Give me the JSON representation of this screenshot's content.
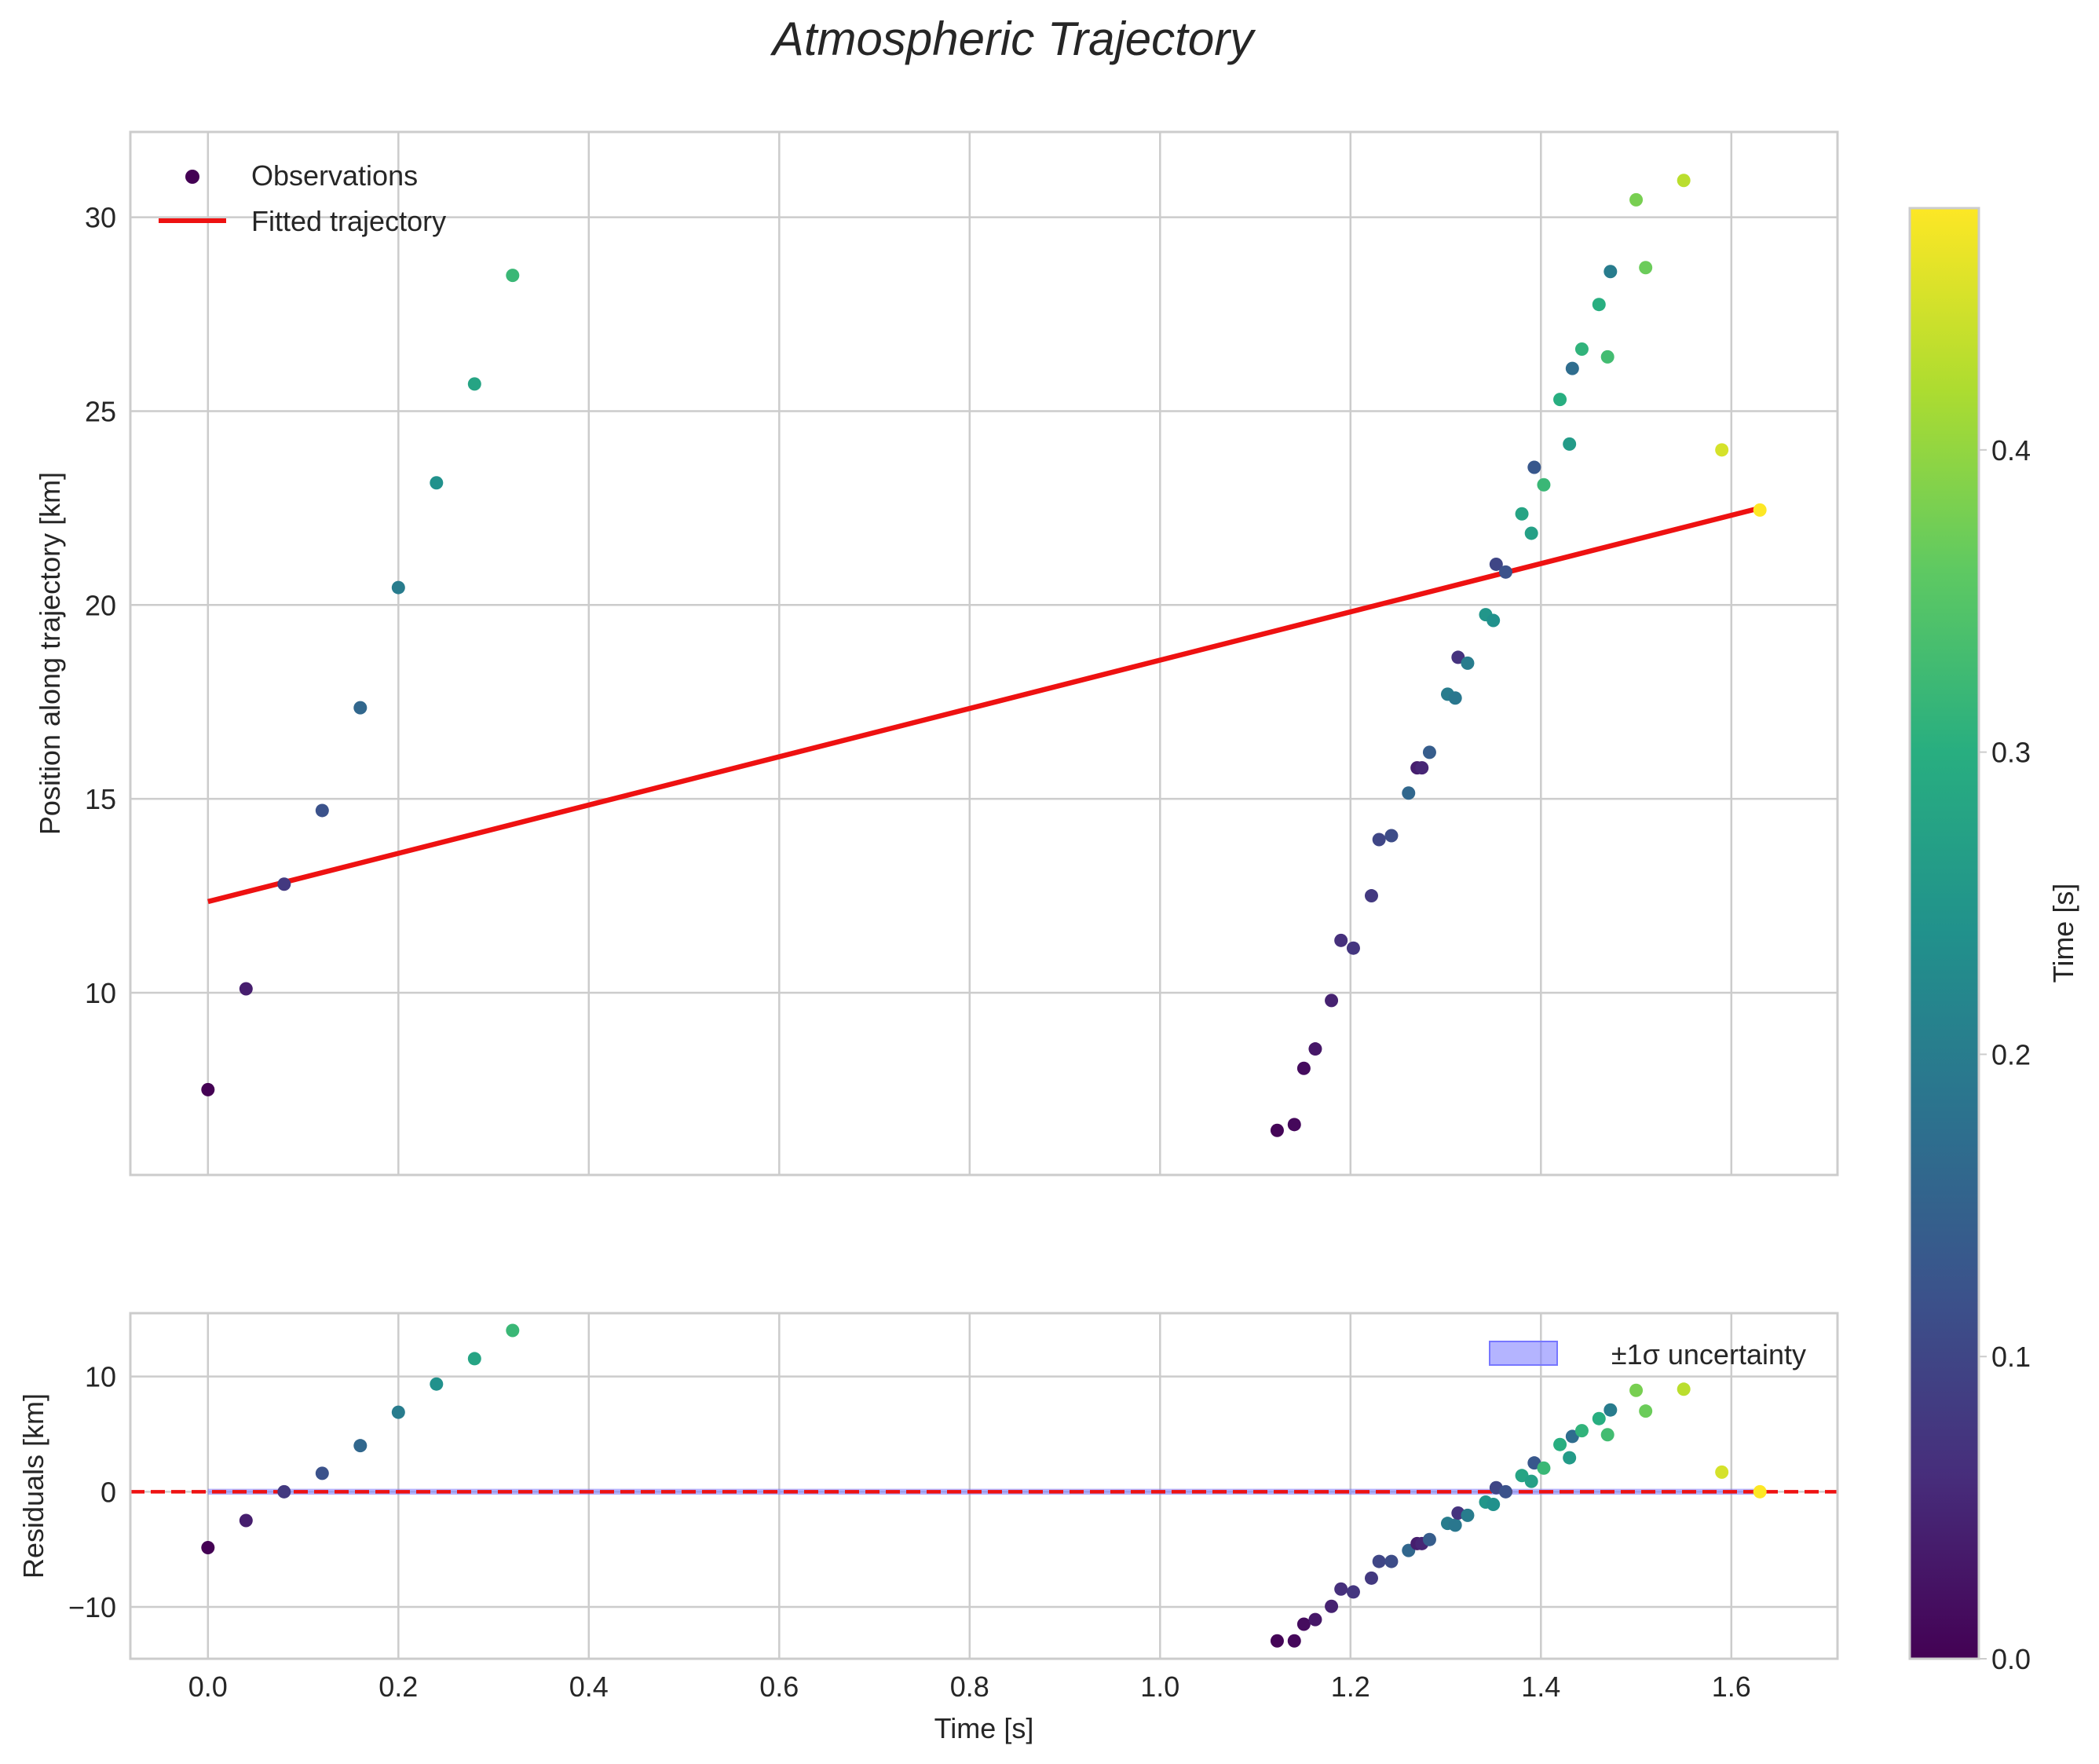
{
  "title": "Atmospheric Trajectory",
  "chart_data": [
    {
      "type": "scatter",
      "panel": "main",
      "ylabel": "Position along trajectory [km]",
      "xlim": [
        -0.0815,
        1.7115
      ],
      "ylim": [
        5.3,
        32.2
      ],
      "xticks": [
        0.0,
        0.2,
        0.4,
        0.6,
        0.8,
        1.0,
        1.2,
        1.4,
        1.6
      ],
      "yticks": [
        10,
        15,
        20,
        25,
        30
      ],
      "ytick_labels": [
        "10",
        "15",
        "20",
        "25",
        "30"
      ],
      "grid": true,
      "legend": {
        "position": "top-left",
        "entries": [
          "Observations",
          "Fitted trajectory"
        ]
      },
      "fit_line": {
        "name": "Fitted trajectory",
        "color": "#ee1111",
        "x": [
          0.0,
          1.63
        ],
        "y": [
          12.35,
          22.5
        ]
      },
      "observations": {
        "name": "Observations",
        "points": [
          [
            0.0,
            7.5,
            0.0
          ],
          [
            0.04,
            10.1,
            0.04
          ],
          [
            0.08,
            12.8,
            0.08
          ],
          [
            0.12,
            14.7,
            0.12
          ],
          [
            0.16,
            17.35,
            0.16
          ],
          [
            0.2,
            20.45,
            0.2
          ],
          [
            0.24,
            23.15,
            0.24
          ],
          [
            0.28,
            25.7,
            0.28
          ],
          [
            0.32,
            28.5,
            0.32
          ],
          [
            1.123,
            6.45,
            0.005
          ],
          [
            1.141,
            6.6,
            0.01
          ],
          [
            1.151,
            8.05,
            0.015
          ],
          [
            1.163,
            8.55,
            0.03
          ],
          [
            1.18,
            9.8,
            0.045
          ],
          [
            1.19,
            11.35,
            0.065
          ],
          [
            1.203,
            11.15,
            0.075
          ],
          [
            1.222,
            12.5,
            0.08
          ],
          [
            1.23,
            13.95,
            0.1
          ],
          [
            1.243,
            14.05,
            0.11
          ],
          [
            1.261,
            15.15,
            0.16
          ],
          [
            1.27,
            15.8,
            0.04
          ],
          [
            1.275,
            15.8,
            0.05
          ],
          [
            1.283,
            16.2,
            0.14
          ],
          [
            1.302,
            17.7,
            0.2
          ],
          [
            1.31,
            17.6,
            0.19
          ],
          [
            1.313,
            18.65,
            0.07
          ],
          [
            1.323,
            18.5,
            0.2
          ],
          [
            1.342,
            19.75,
            0.25
          ],
          [
            1.35,
            19.6,
            0.24
          ],
          [
            1.353,
            21.05,
            0.1
          ],
          [
            1.363,
            20.85,
            0.12
          ],
          [
            1.38,
            22.35,
            0.28
          ],
          [
            1.39,
            21.85,
            0.27
          ],
          [
            1.393,
            23.55,
            0.13
          ],
          [
            1.403,
            23.1,
            0.32
          ],
          [
            1.42,
            25.3,
            0.3
          ],
          [
            1.43,
            24.15,
            0.26
          ],
          [
            1.433,
            26.1,
            0.17
          ],
          [
            1.443,
            26.6,
            0.31
          ],
          [
            1.461,
            27.75,
            0.3
          ],
          [
            1.47,
            26.4,
            0.33
          ],
          [
            1.473,
            28.6,
            0.2
          ],
          [
            1.5,
            30.45,
            0.38
          ],
          [
            1.51,
            28.7,
            0.37
          ],
          [
            1.55,
            30.95,
            0.43
          ],
          [
            1.59,
            24.0,
            0.45
          ],
          [
            1.63,
            22.45,
            0.48
          ]
        ]
      }
    },
    {
      "type": "scatter",
      "panel": "residuals",
      "xlabel": "Time [s]",
      "ylabel": "Residuals [km]",
      "xlim": [
        -0.0815,
        1.7115
      ],
      "ylim": [
        -14.5,
        15.5
      ],
      "xticks": [
        0.0,
        0.2,
        0.4,
        0.6,
        0.8,
        1.0,
        1.2,
        1.4,
        1.6
      ],
      "xtick_labels": [
        "0.0",
        "0.2",
        "0.4",
        "0.6",
        "0.8",
        "1.0",
        "1.2",
        "1.4",
        "1.6"
      ],
      "yticks": [
        -10,
        0,
        10
      ],
      "ytick_labels": [
        "−10",
        "0",
        "10"
      ],
      "grid": true,
      "legend": {
        "position": "top-right",
        "entries": [
          "±1σ uncertainty"
        ]
      },
      "zero_line": {
        "y": 0,
        "color": "#ee1111",
        "style": "dashed"
      },
      "uncertainty_band": {
        "name": "±1σ uncertainty",
        "y_low": -0.05,
        "y_high": 0.05,
        "color": "#7777ff"
      },
      "points": [
        [
          0.0,
          -4.85,
          0.0
        ],
        [
          0.04,
          -2.5,
          0.04
        ],
        [
          0.08,
          0.0,
          0.08
        ],
        [
          0.12,
          1.6,
          0.12
        ],
        [
          0.16,
          4.0,
          0.16
        ],
        [
          0.2,
          6.9,
          0.2
        ],
        [
          0.24,
          9.35,
          0.24
        ],
        [
          0.28,
          11.55,
          0.28
        ],
        [
          0.32,
          14.0,
          0.32
        ],
        [
          1.123,
          -12.95,
          0.005
        ],
        [
          1.141,
          -12.95,
          0.01
        ],
        [
          1.151,
          -11.5,
          0.015
        ],
        [
          1.163,
          -11.1,
          0.03
        ],
        [
          1.18,
          -9.95,
          0.045
        ],
        [
          1.19,
          -8.45,
          0.065
        ],
        [
          1.203,
          -8.7,
          0.075
        ],
        [
          1.222,
          -7.5,
          0.08
        ],
        [
          1.23,
          -6.05,
          0.1
        ],
        [
          1.243,
          -6.05,
          0.11
        ],
        [
          1.261,
          -5.1,
          0.16
        ],
        [
          1.27,
          -4.5,
          0.04
        ],
        [
          1.275,
          -4.5,
          0.05
        ],
        [
          1.283,
          -4.15,
          0.14
        ],
        [
          1.302,
          -2.75,
          0.2
        ],
        [
          1.31,
          -2.9,
          0.19
        ],
        [
          1.313,
          -1.85,
          0.07
        ],
        [
          1.323,
          -2.05,
          0.2
        ],
        [
          1.342,
          -0.9,
          0.25
        ],
        [
          1.35,
          -1.1,
          0.24
        ],
        [
          1.353,
          0.35,
          0.1
        ],
        [
          1.363,
          0.0,
          0.12
        ],
        [
          1.38,
          1.4,
          0.28
        ],
        [
          1.39,
          0.9,
          0.27
        ],
        [
          1.393,
          2.5,
          0.13
        ],
        [
          1.403,
          2.05,
          0.32
        ],
        [
          1.42,
          4.1,
          0.3
        ],
        [
          1.43,
          2.95,
          0.26
        ],
        [
          1.433,
          4.8,
          0.17
        ],
        [
          1.443,
          5.3,
          0.31
        ],
        [
          1.461,
          6.35,
          0.3
        ],
        [
          1.47,
          4.95,
          0.33
        ],
        [
          1.473,
          7.1,
          0.2
        ],
        [
          1.5,
          8.8,
          0.38
        ],
        [
          1.51,
          7.0,
          0.37
        ],
        [
          1.55,
          8.9,
          0.43
        ],
        [
          1.59,
          1.7,
          0.45
        ],
        [
          1.63,
          0.0,
          0.48
        ]
      ]
    },
    {
      "type": "colorbar",
      "label": "Time [s]",
      "range": [
        0.0,
        0.48
      ],
      "ticks": [
        0.0,
        0.1,
        0.2,
        0.3,
        0.4
      ],
      "tick_labels": [
        "0.0",
        "0.1",
        "0.2",
        "0.3",
        "0.4"
      ],
      "colormap": "viridis"
    }
  ]
}
